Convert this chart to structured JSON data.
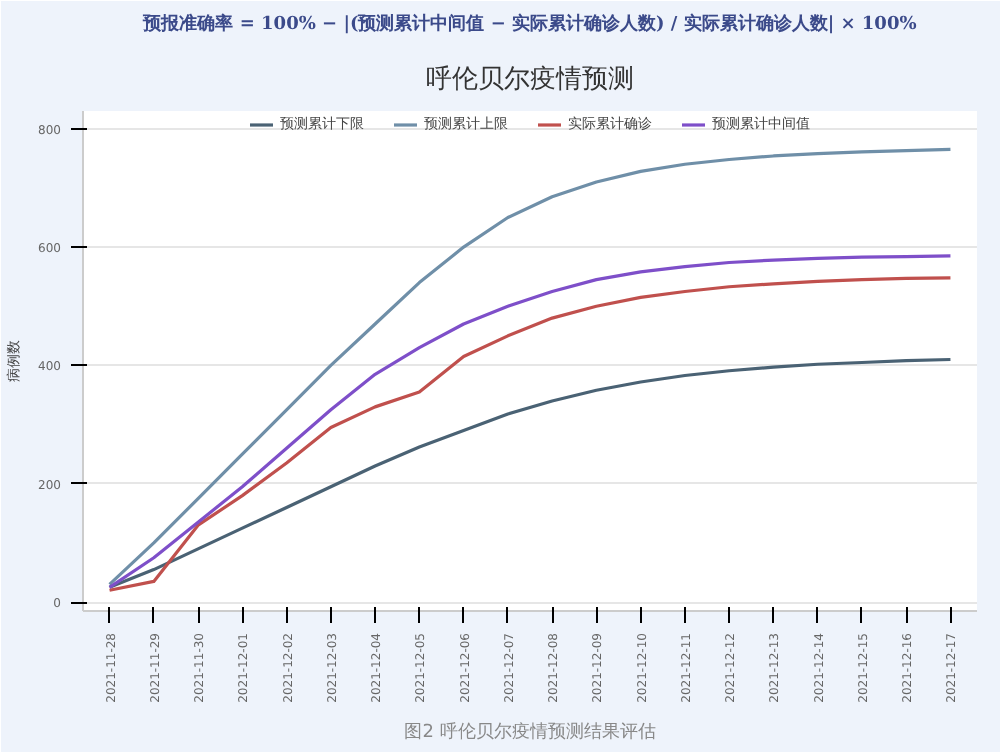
{
  "chart_data": {
    "type": "line",
    "title": "呼伦贝尔疫情预测",
    "ylabel": "病例数",
    "annotations": [
      "预报准确率 = 100% − |(预测累计中间值 − 实际累计确诊人数) / 实际累计确诊人数| × 100%",
      "图2 呼伦贝尔疫情预测结果评估"
    ],
    "categories": [
      "2021-11-28",
      "2021-11-29",
      "2021-11-30",
      "2021-12-01",
      "2021-12-02",
      "2021-12-03",
      "2021-12-04",
      "2021-12-05",
      "2021-12-06",
      "2021-12-07",
      "2021-12-08",
      "2021-12-09",
      "2021-12-10",
      "2021-12-11",
      "2021-12-12",
      "2021-12-13",
      "2021-12-14",
      "2021-12-15",
      "2021-12-16",
      "2021-12-17"
    ],
    "series": [
      {
        "name": "预测累计下限",
        "color": "#4a6274",
        "values": [
          25,
          55,
          90,
          125,
          160,
          195,
          230,
          262,
          290,
          318,
          340,
          358,
          372,
          383,
          391,
          397,
          402,
          405,
          408,
          410
        ]
      },
      {
        "name": "预测累计上限",
        "color": "#6f8fa8",
        "values": [
          30,
          100,
          175,
          250,
          325,
          400,
          470,
          540,
          600,
          650,
          685,
          710,
          728,
          740,
          748,
          754,
          758,
          761,
          763,
          765
        ]
      },
      {
        "name": "实际累计确诊",
        "color": "#c0504d",
        "values": [
          20,
          35,
          130,
          180,
          235,
          295,
          330,
          355,
          415,
          450,
          480,
          500,
          515,
          525,
          533,
          538,
          542,
          545,
          547,
          548
        ]
      },
      {
        "name": "预测累计中间值",
        "color": "#7e4fc9",
        "values": [
          25,
          75,
          135,
          195,
          260,
          325,
          385,
          430,
          470,
          500,
          525,
          545,
          558,
          567,
          574,
          578,
          581,
          583,
          584,
          585
        ]
      }
    ],
    "ylim": [
      -15,
      830
    ],
    "yticks": [
      0,
      200,
      400,
      600,
      800
    ],
    "grid": "y",
    "legend": "top",
    "line_style": "solid",
    "marker": "none"
  }
}
